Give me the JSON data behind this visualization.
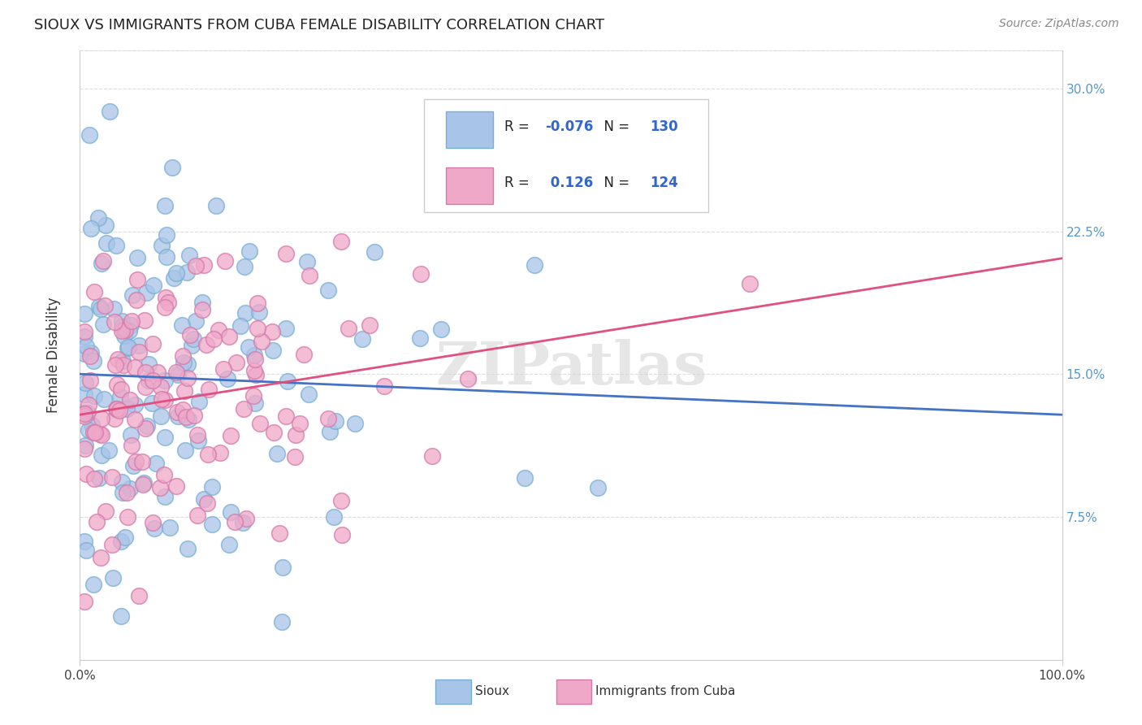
{
  "title": "SIOUX VS IMMIGRANTS FROM CUBA FEMALE DISABILITY CORRELATION CHART",
  "source": "Source: ZipAtlas.com",
  "ylabel": "Female Disability",
  "yticks_labels": [
    "7.5%",
    "15.0%",
    "22.5%",
    "30.0%"
  ],
  "ytick_vals": [
    0.075,
    0.15,
    0.225,
    0.3
  ],
  "xlim": [
    0.0,
    1.0
  ],
  "ylim": [
    0.0,
    0.32
  ],
  "sioux_R": -0.076,
  "sioux_N": 130,
  "cuba_R": 0.126,
  "cuba_N": 124,
  "sioux_dot_color": "#a8c4e8",
  "cuba_dot_color": "#f0a8c8",
  "sioux_edge_color": "#7aafd4",
  "cuba_edge_color": "#d47aaa",
  "sioux_line_color": "#4472C4",
  "cuba_line_color": "#E05080",
  "watermark": "ZIPatlas",
  "background_color": "#ffffff",
  "grid_color": "#dddddd",
  "right_tick_color": "#5599cc"
}
